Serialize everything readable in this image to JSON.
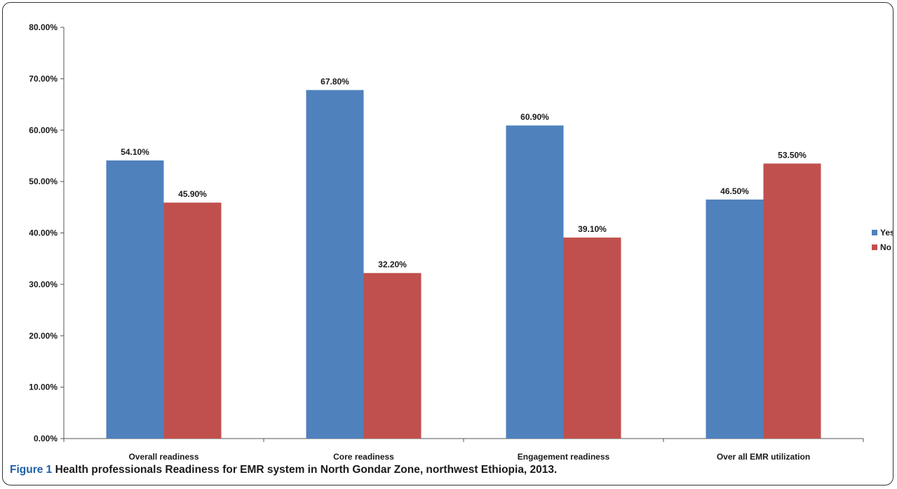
{
  "caption": {
    "label": "Figure 1",
    "text": "Health professionals  Readiness for EMR system in North Gondar Zone, northwest Ethiopia, 2013."
  },
  "chart_data": {
    "type": "bar",
    "categories": [
      "Overall readiness",
      "Core readiness",
      "Engagement readiness",
      "Over all EMR utilization"
    ],
    "series": [
      {
        "name": "Yes",
        "color": "#4f81bd",
        "values": [
          54.1,
          67.8,
          60.9,
          46.5
        ],
        "labels": [
          "54.10%",
          "67.80%",
          "60.90%",
          "46.50%"
        ]
      },
      {
        "name": "No",
        "color": "#c0504d",
        "values": [
          45.9,
          32.2,
          39.1,
          53.5
        ],
        "labels": [
          "45.90%",
          "32.20%",
          "39.10%",
          "53.50%"
        ]
      }
    ],
    "ylim": [
      0,
      80
    ],
    "yticks": [
      0,
      10,
      20,
      30,
      40,
      50,
      60,
      70,
      80
    ],
    "ytick_labels": [
      "0.00%",
      "10.00%",
      "20.00%",
      "30.00%",
      "40.00%",
      "50.00%",
      "60.00%",
      "70.00%",
      "80.00%"
    ],
    "grid": false,
    "legend_position": "right",
    "title": "",
    "xlabel": "",
    "ylabel": ""
  }
}
